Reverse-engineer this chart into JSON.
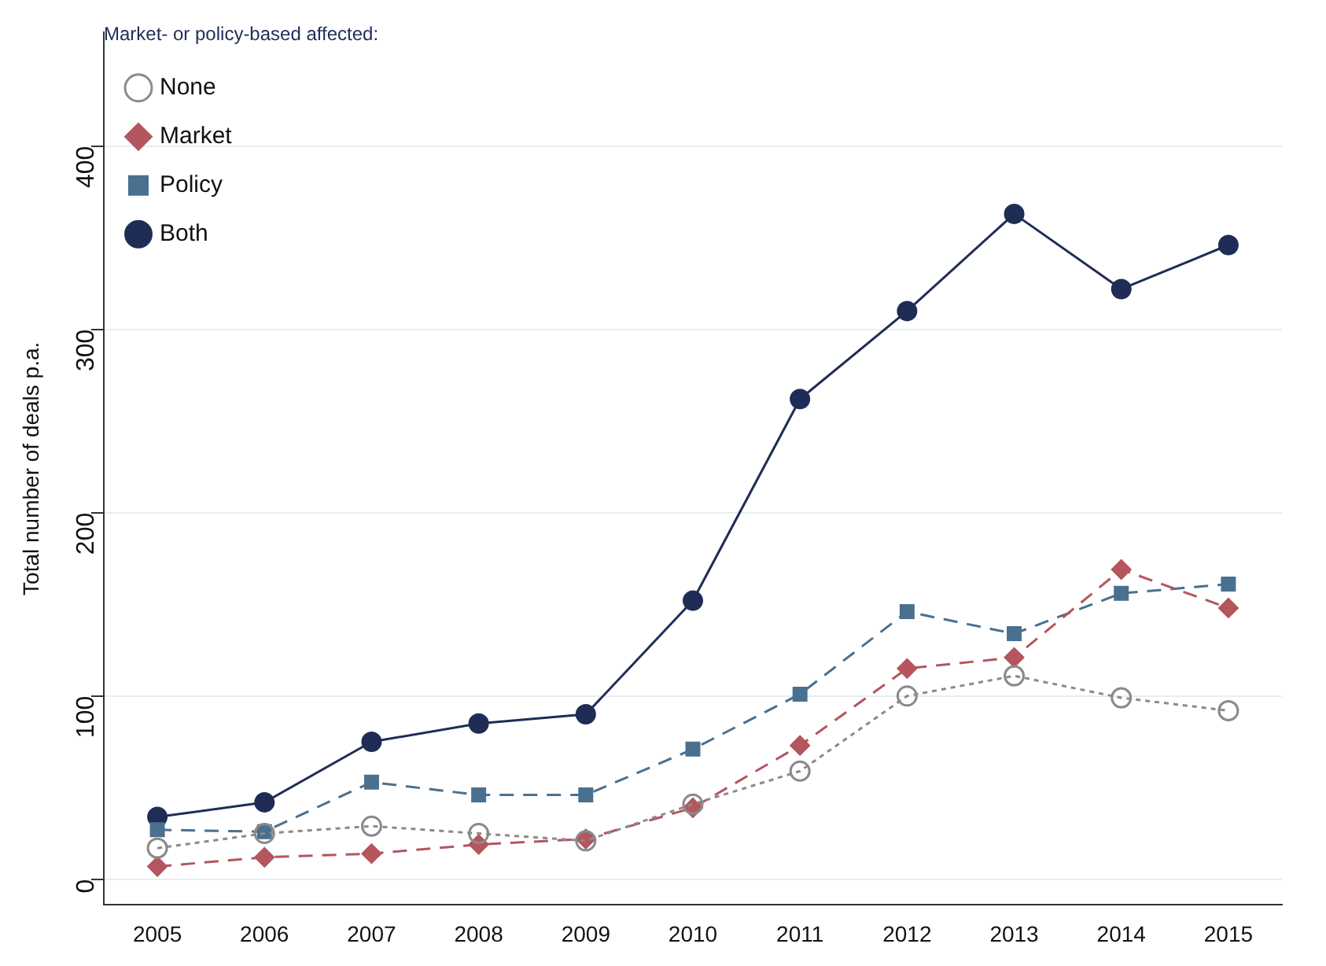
{
  "chart_data": {
    "type": "line",
    "ylabel": "Total number of deals p.a.",
    "legend_title": "Market- or policy-based affected:",
    "categories": [
      "2005",
      "2006",
      "2007",
      "2008",
      "2009",
      "2010",
      "2011",
      "2012",
      "2013",
      "2014",
      "2015"
    ],
    "series": [
      {
        "name": "None",
        "color": "#8a8a8a",
        "marker": "circle",
        "line_style": "dotted",
        "values": [
          17,
          25,
          29,
          25,
          21,
          41,
          59,
          100,
          111,
          99,
          92
        ]
      },
      {
        "name": "Market",
        "color": "#b5555e",
        "marker": "diamond",
        "line_style": "dashed",
        "values": [
          7,
          12,
          14,
          19,
          22,
          39,
          73,
          115,
          121,
          169,
          148
        ]
      },
      {
        "name": "Policy",
        "color": "#4a7090",
        "marker": "square",
        "line_style": "dashed",
        "values": [
          27,
          26,
          53,
          46,
          46,
          71,
          101,
          146,
          134,
          156,
          161
        ]
      },
      {
        "name": "Both",
        "color": "#1f2d56",
        "marker": "circle",
        "line_style": "solid",
        "values": [
          34,
          42,
          75,
          85,
          90,
          152,
          262,
          310,
          363,
          322,
          346
        ]
      }
    ],
    "ylim": [
      -14,
      462
    ],
    "yticks": [
      0,
      100,
      200,
      300,
      400
    ],
    "grid": "y",
    "legend": "top left"
  }
}
